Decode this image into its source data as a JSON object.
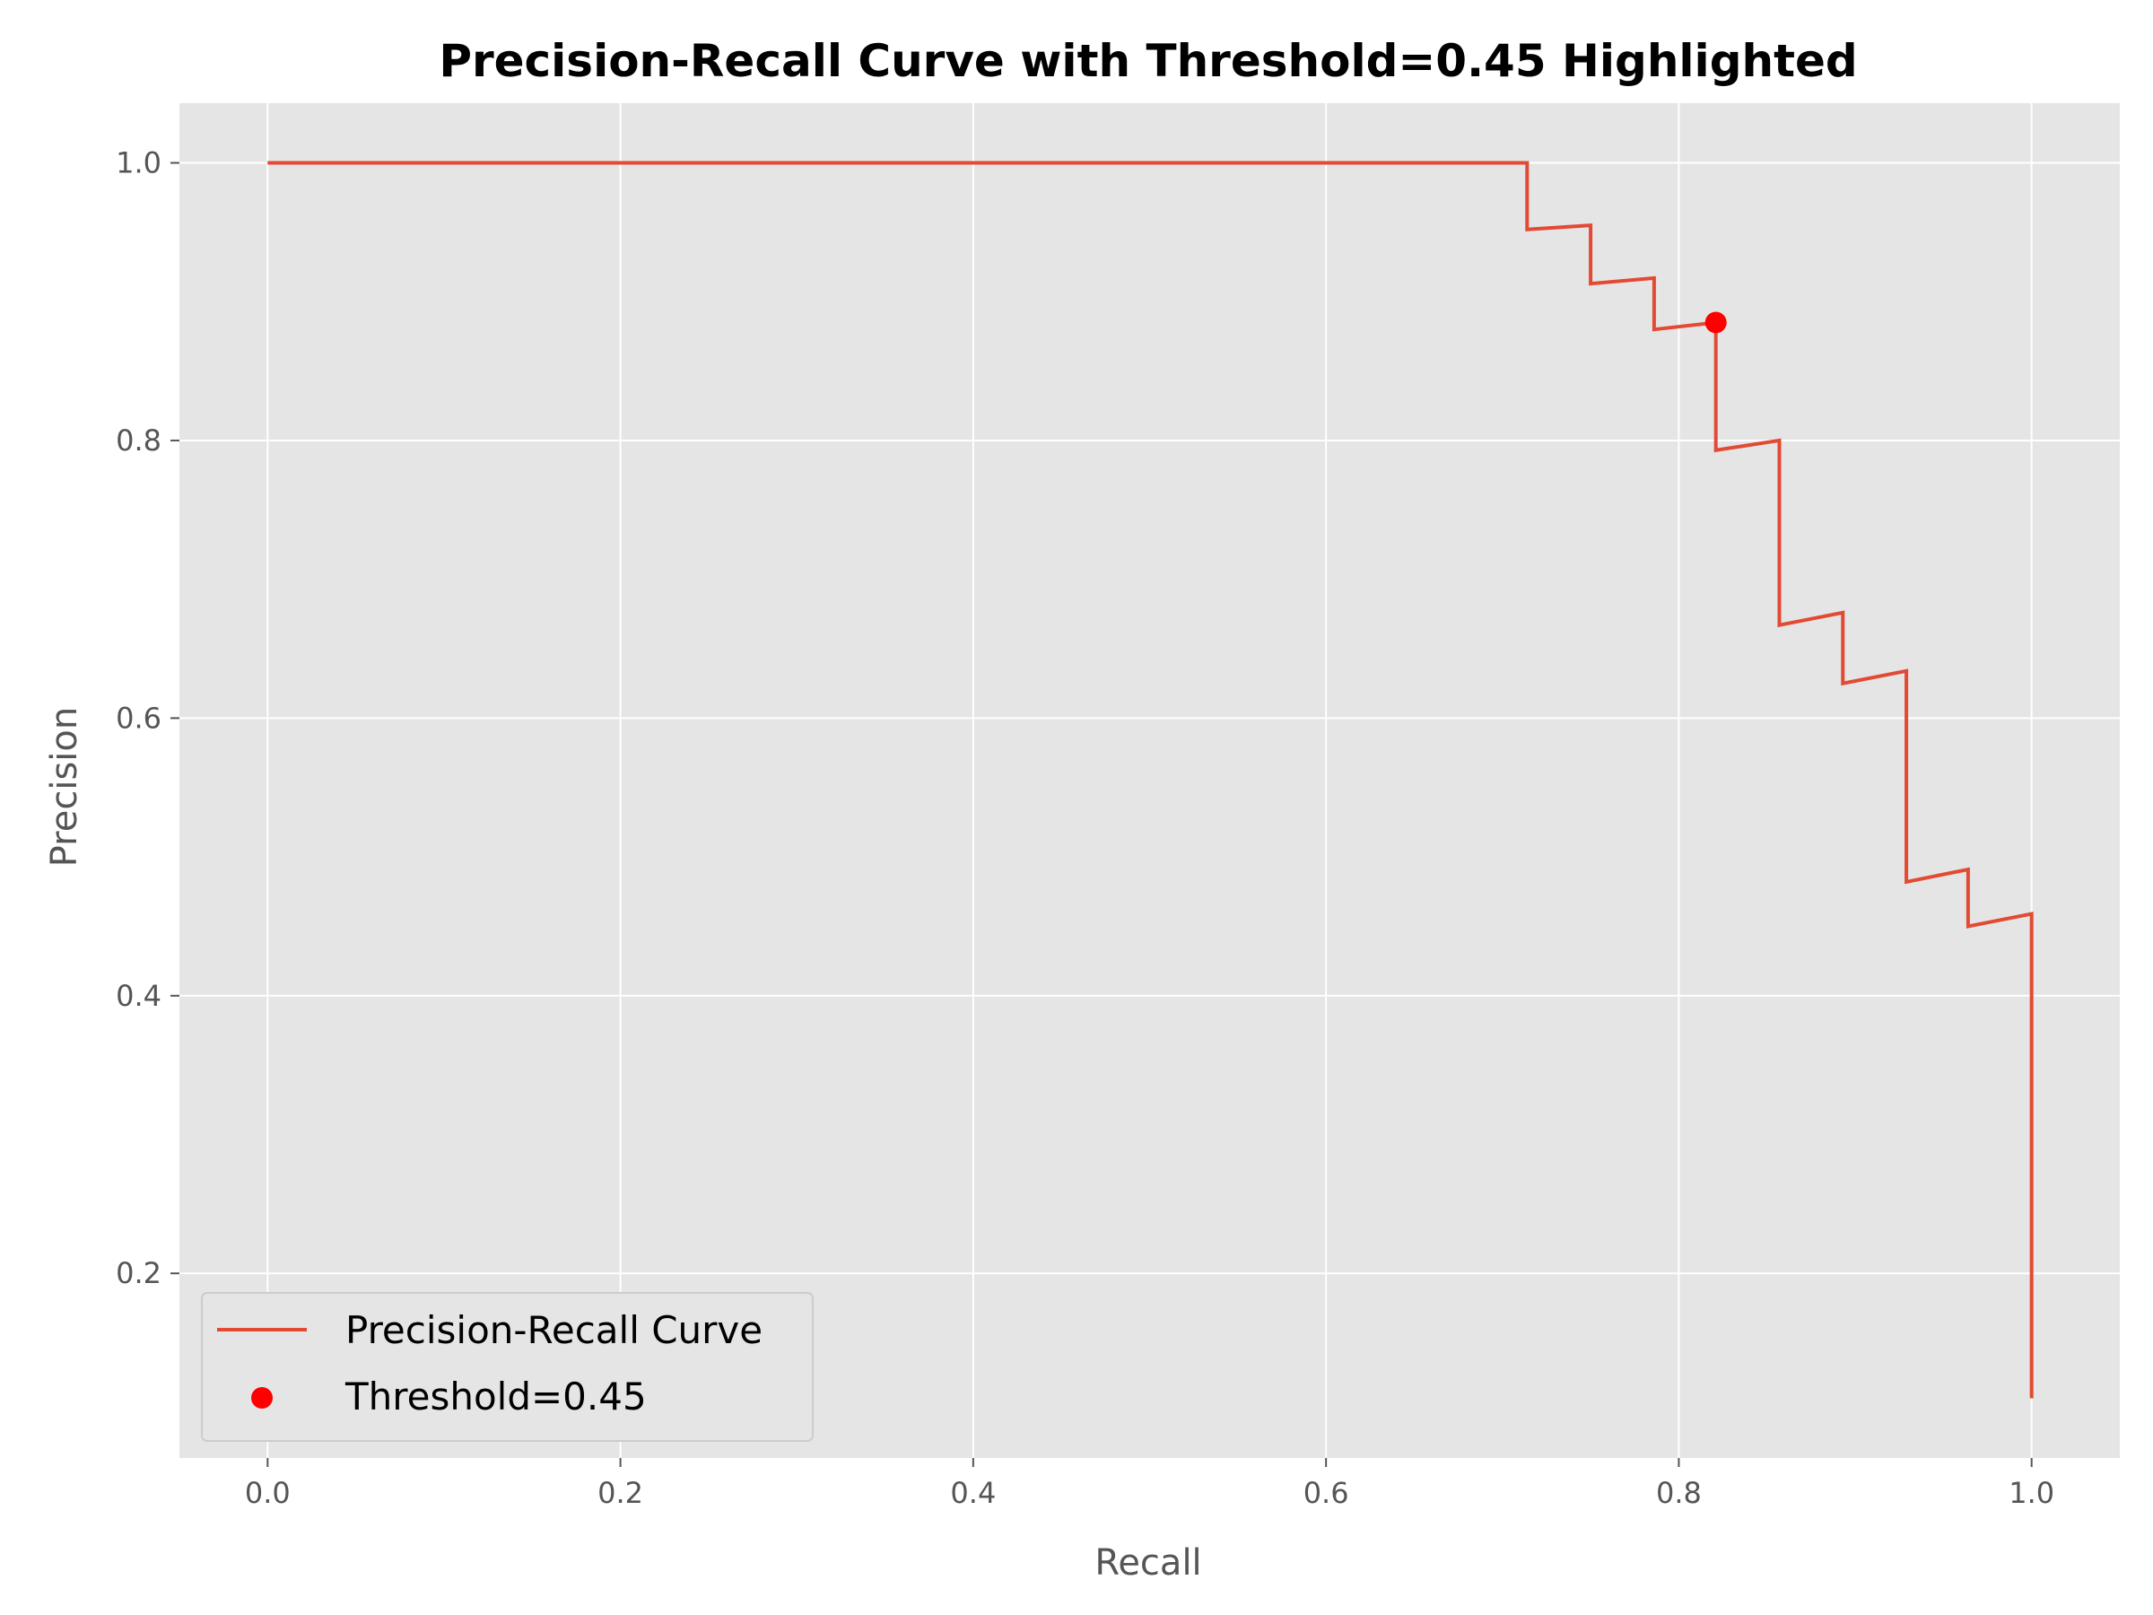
{
  "chart_data": {
    "type": "line",
    "title": "Precision-Recall Curve with Threshold=0.45 Highlighted",
    "xlabel": "Recall",
    "ylabel": "Precision",
    "xlim": [
      -0.05,
      1.05
    ],
    "ylim": [
      0.067,
      1.043
    ],
    "xticks": [
      0.0,
      0.2,
      0.4,
      0.6,
      0.8,
      1.0
    ],
    "xtick_labels": [
      "0.0",
      "0.2",
      "0.4",
      "0.6",
      "0.8",
      "1.0"
    ],
    "yticks": [
      0.2,
      0.4,
      0.6,
      0.8,
      1.0
    ],
    "ytick_labels": [
      "0.2",
      "0.4",
      "0.6",
      "0.8",
      "1.0"
    ],
    "grid": true,
    "legend_position": "lower-left",
    "background_color": "#e5e5e5",
    "series": [
      {
        "name": "Precision-Recall Curve",
        "color": "#e24a33",
        "style": "line",
        "x": [
          0.0,
          0.714,
          0.714,
          0.75,
          0.75,
          0.786,
          0.786,
          0.821,
          0.821,
          0.857,
          0.857,
          0.893,
          0.893,
          0.929,
          0.929,
          0.964,
          0.964,
          1.0,
          1.0
        ],
        "y": [
          1.0,
          1.0,
          0.952,
          0.955,
          0.913,
          0.917,
          0.88,
          0.885,
          0.793,
          0.8,
          0.667,
          0.676,
          0.625,
          0.634,
          0.482,
          0.491,
          0.45,
          0.459,
          0.11
        ]
      },
      {
        "name": "Threshold=0.45",
        "color": "#ff0000",
        "style": "point",
        "x": [
          0.821
        ],
        "y": [
          0.885
        ]
      }
    ]
  }
}
